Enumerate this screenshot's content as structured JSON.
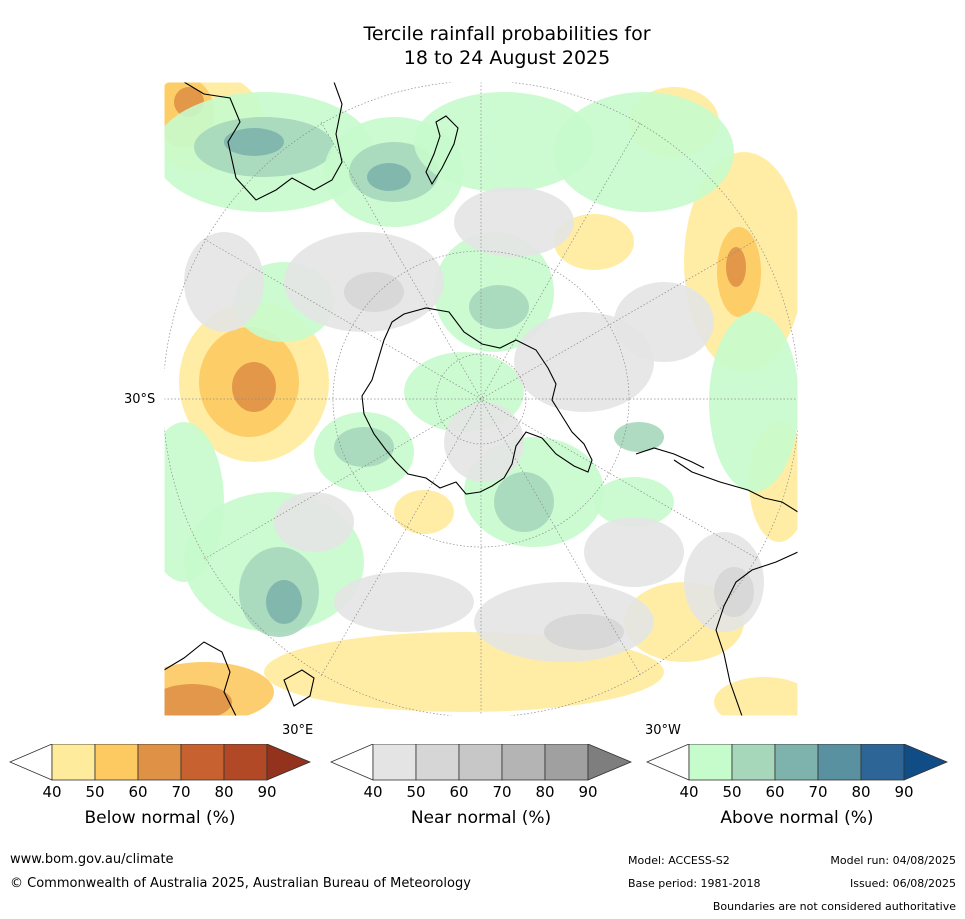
{
  "title": [
    "Tercile rainfall probabilities for",
    "18 to 24 August 2025"
  ],
  "map": {
    "lat_label": "30°S",
    "lon_labels": {
      "east": "30°E",
      "west": "30°W"
    },
    "colors": {
      "below": [
        "#ffeb9c",
        "#fdc961",
        "#df9146",
        "#c76230",
        "#b24926",
        "#93321d"
      ],
      "near": [
        "#e4e4e4",
        "#d6d6d6",
        "#c7c7c7",
        "#b4b4b4",
        "#a0a0a0",
        "#7e7e7e"
      ],
      "above": [
        "#c6fbcc",
        "#a6d7bb",
        "#7db3ac",
        "#5991a1",
        "#2d6596",
        "#104d87"
      ]
    }
  },
  "colorbars": [
    {
      "key": "below",
      "label": "Below normal (%)",
      "ticks": [
        "40",
        "50",
        "60",
        "70",
        "80",
        "90"
      ]
    },
    {
      "key": "near",
      "label": "Near normal (%)",
      "ticks": [
        "40",
        "50",
        "60",
        "70",
        "80",
        "90"
      ]
    },
    {
      "key": "above",
      "label": "Above normal (%)",
      "ticks": [
        "40",
        "50",
        "60",
        "70",
        "80",
        "90"
      ]
    }
  ],
  "footer": {
    "website": "www.bom.gov.au/climate",
    "copyright": "© Commonwealth of Australia 2025, Australian Bureau of Meteorology",
    "model": "Model: ACCESS-S2",
    "model_run": "Model run: 04/08/2025",
    "base_period": "Base period: 1981-2018",
    "issued": "Issued: 06/08/2025",
    "disclaimer": "Boundaries are not considered authoritative"
  }
}
